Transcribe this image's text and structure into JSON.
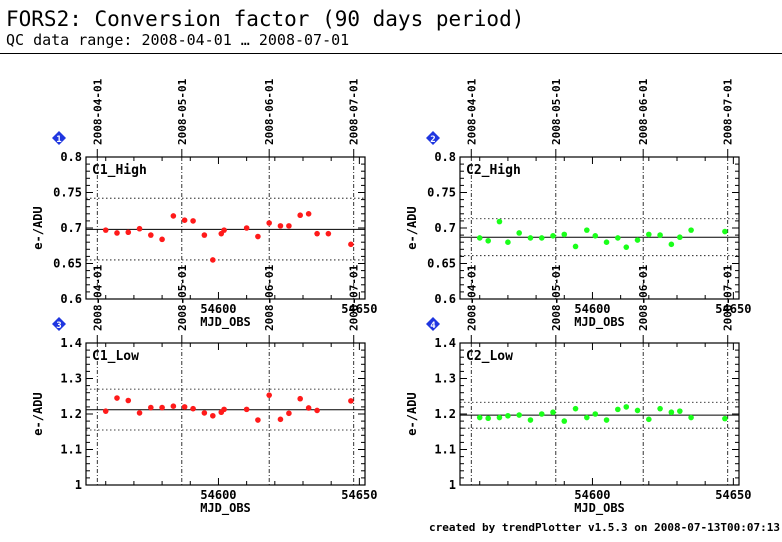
{
  "header": {
    "title": "FORS2: Conversion factor (90 days period)",
    "subtitle": "QC data range: 2008-04-01 … 2008-07-01"
  },
  "footer": "created by trendPlotter v1.5.3 on 2008-07-13T00:07:13",
  "colors": {
    "c1": "#ff1a1a",
    "c2": "#1aff1a",
    "badge": "#1f36e0",
    "axis": "#000000"
  },
  "chart_data": [
    {
      "type": "scatter",
      "badge": "1",
      "label": "C1_High",
      "xlabel": "MJD_OBS",
      "ylabel": "e-/ADU",
      "xlim": [
        54553,
        54652
      ],
      "ylim": [
        0.6,
        0.8
      ],
      "xticks": [
        54600,
        54650
      ],
      "yticks": [
        0.6,
        0.65,
        0.7,
        0.75,
        0.8
      ],
      "ytick_labels": [
        "0.6",
        "0.65",
        "0.7",
        "0.75",
        "0.8"
      ],
      "date_ticks": [
        {
          "x": 54557,
          "label": "2008-04-01"
        },
        {
          "x": 54587,
          "label": "2008-05-01"
        },
        {
          "x": 54618,
          "label": "2008-06-01"
        },
        {
          "x": 54648,
          "label": "2008-07-01"
        }
      ],
      "mean": 0.698,
      "band": [
        0.655,
        0.742
      ],
      "series": [
        {
          "color": "#ff1a1a",
          "x": [
            54560,
            54564,
            54568,
            54572,
            54576,
            54580,
            54584,
            54588,
            54591,
            54595,
            54598,
            54601,
            54602,
            54610,
            54614,
            54618,
            54622,
            54625,
            54629,
            54632,
            54635,
            54639,
            54647
          ],
          "y": [
            0.697,
            0.693,
            0.694,
            0.699,
            0.69,
            0.684,
            0.717,
            0.711,
            0.71,
            0.69,
            0.655,
            0.692,
            0.697,
            0.7,
            0.688,
            0.707,
            0.703,
            0.703,
            0.718,
            0.72,
            0.692,
            0.692,
            0.677
          ]
        }
      ]
    },
    {
      "type": "scatter",
      "badge": "2",
      "label": "C2_High",
      "xlabel": "MJD_OBS",
      "ylabel": "e-/ADU",
      "xlim": [
        54553,
        54652
      ],
      "ylim": [
        0.6,
        0.8
      ],
      "xticks": [
        54600,
        54650
      ],
      "yticks": [
        0.6,
        0.65,
        0.7,
        0.75,
        0.8
      ],
      "ytick_labels": [
        "0.6",
        "0.65",
        "0.7",
        "0.75",
        "0.8"
      ],
      "date_ticks": [
        {
          "x": 54557,
          "label": "2008-04-01"
        },
        {
          "x": 54587,
          "label": "2008-05-01"
        },
        {
          "x": 54618,
          "label": "2008-06-01"
        },
        {
          "x": 54648,
          "label": "2008-07-01"
        }
      ],
      "mean": 0.687,
      "band": [
        0.661,
        0.713
      ],
      "series": [
        {
          "color": "#1aff1a",
          "x": [
            54560,
            54563,
            54567,
            54570,
            54574,
            54578,
            54582,
            54586,
            54590,
            54594,
            54598,
            54601,
            54605,
            54609,
            54612,
            54616,
            54620,
            54624,
            54628,
            54631,
            54635,
            54647
          ],
          "y": [
            0.686,
            0.682,
            0.709,
            0.68,
            0.693,
            0.686,
            0.686,
            0.689,
            0.691,
            0.674,
            0.697,
            0.689,
            0.68,
            0.686,
            0.673,
            0.683,
            0.691,
            0.69,
            0.677,
            0.687,
            0.697,
            0.695
          ]
        }
      ]
    },
    {
      "type": "scatter",
      "badge": "3",
      "label": "C1_Low",
      "xlabel": "MJD_OBS",
      "ylabel": "e-/ADU",
      "xlim": [
        54553,
        54652
      ],
      "ylim": [
        1.0,
        1.4
      ],
      "xticks": [
        54600,
        54650
      ],
      "yticks": [
        1.0,
        1.1,
        1.2,
        1.3,
        1.4
      ],
      "ytick_labels": [
        "1",
        "1.1",
        "1.2",
        "1.3",
        "1.4"
      ],
      "date_ticks": [
        {
          "x": 54557,
          "label": "2008-04-01"
        },
        {
          "x": 54587,
          "label": "2008-05-01"
        },
        {
          "x": 54618,
          "label": "2008-06-01"
        },
        {
          "x": 54648,
          "label": "2008-07-01"
        }
      ],
      "mean": 1.212,
      "band": [
        1.155,
        1.27
      ],
      "series": [
        {
          "color": "#ff1a1a",
          "x": [
            54560,
            54564,
            54568,
            54572,
            54576,
            54580,
            54584,
            54588,
            54591,
            54595,
            54598,
            54601,
            54602,
            54610,
            54614,
            54618,
            54622,
            54625,
            54629,
            54632,
            54635,
            54647
          ],
          "y": [
            1.208,
            1.245,
            1.238,
            1.203,
            1.218,
            1.218,
            1.222,
            1.22,
            1.215,
            1.203,
            1.195,
            1.205,
            1.213,
            1.213,
            1.183,
            1.253,
            1.185,
            1.202,
            1.243,
            1.217,
            1.21,
            1.237
          ]
        }
      ]
    },
    {
      "type": "scatter",
      "badge": "4",
      "label": "C2_Low",
      "xlabel": "MJD_OBS",
      "ylabel": "e-/ADU",
      "xlim": [
        54553,
        54652
      ],
      "ylim": [
        1.0,
        1.4
      ],
      "xticks": [
        54600,
        54650
      ],
      "yticks": [
        1.0,
        1.1,
        1.2,
        1.3,
        1.4
      ],
      "ytick_labels": [
        "1",
        "1.1",
        "1.2",
        "1.3",
        "1.4"
      ],
      "date_ticks": [
        {
          "x": 54557,
          "label": "2008-04-01"
        },
        {
          "x": 54587,
          "label": "2008-05-01"
        },
        {
          "x": 54618,
          "label": "2008-06-01"
        },
        {
          "x": 54648,
          "label": "2008-07-01"
        }
      ],
      "mean": 1.197,
      "band": [
        1.16,
        1.233
      ],
      "series": [
        {
          "color": "#1aff1a",
          "x": [
            54560,
            54563,
            54567,
            54570,
            54574,
            54578,
            54582,
            54586,
            54590,
            54594,
            54598,
            54601,
            54605,
            54609,
            54612,
            54616,
            54620,
            54624,
            54628,
            54631,
            54635,
            54647
          ],
          "y": [
            1.19,
            1.188,
            1.19,
            1.195,
            1.197,
            1.183,
            1.2,
            1.205,
            1.18,
            1.215,
            1.19,
            1.2,
            1.183,
            1.213,
            1.22,
            1.21,
            1.185,
            1.215,
            1.205,
            1.208,
            1.19,
            1.187
          ]
        }
      ]
    }
  ]
}
